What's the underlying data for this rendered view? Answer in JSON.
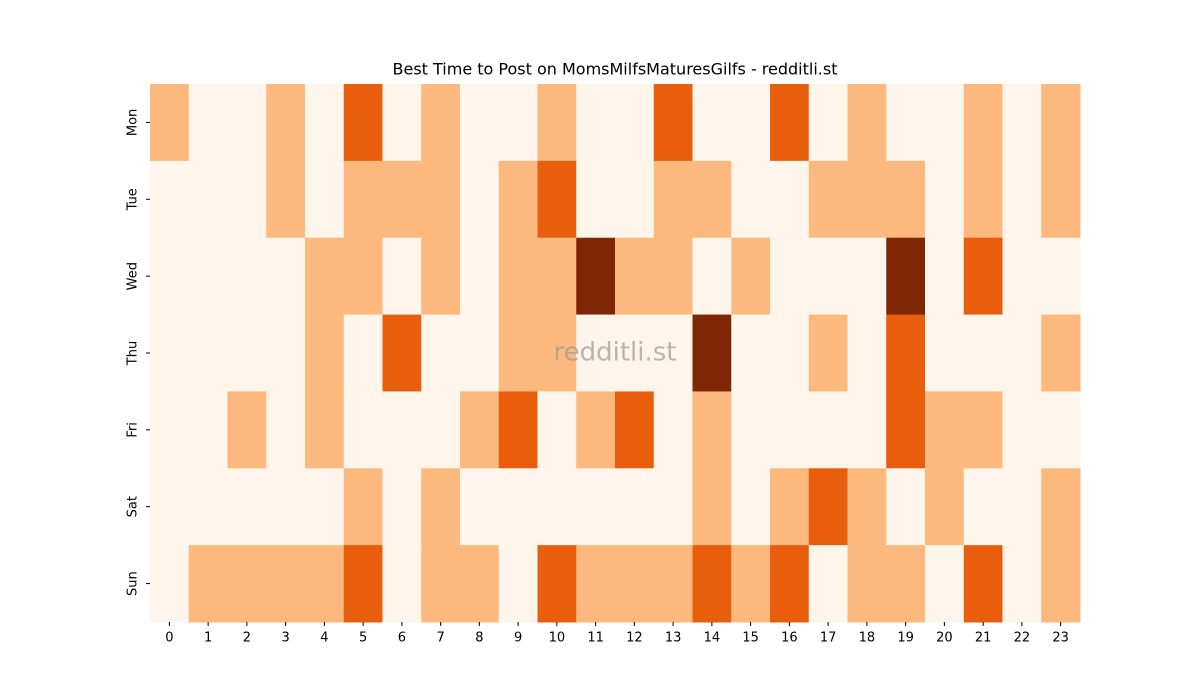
{
  "chart_data": {
    "type": "heatmap",
    "title": "Best Time to Post on MomsMilfsMaturesGilfs - redditli.st",
    "watermark": "redditli.st",
    "x": [
      0,
      1,
      2,
      3,
      4,
      5,
      6,
      7,
      8,
      9,
      10,
      11,
      12,
      13,
      14,
      15,
      16,
      17,
      18,
      19,
      20,
      21,
      22,
      23
    ],
    "y": [
      "Mon",
      "Tue",
      "Wed",
      "Thu",
      "Fri",
      "Sat",
      "Sun"
    ],
    "values": [
      [
        1,
        0,
        0,
        1,
        0,
        2,
        0,
        1,
        0,
        0,
        1,
        0,
        0,
        2,
        0,
        0,
        2,
        0,
        1,
        0,
        0,
        1,
        0,
        1
      ],
      [
        0,
        0,
        0,
        1,
        0,
        1,
        1,
        1,
        0,
        1,
        2,
        0,
        0,
        1,
        1,
        0,
        0,
        1,
        1,
        1,
        0,
        1,
        0,
        1
      ],
      [
        0,
        0,
        0,
        0,
        1,
        1,
        0,
        1,
        0,
        1,
        1,
        3,
        1,
        1,
        0,
        1,
        0,
        0,
        0,
        3,
        0,
        2,
        0,
        0
      ],
      [
        0,
        0,
        0,
        0,
        1,
        0,
        2,
        0,
        0,
        1,
        1,
        0,
        0,
        0,
        3,
        0,
        0,
        1,
        0,
        2,
        0,
        0,
        0,
        1
      ],
      [
        0,
        0,
        1,
        0,
        1,
        0,
        0,
        0,
        1,
        2,
        0,
        1,
        2,
        0,
        1,
        0,
        0,
        0,
        0,
        2,
        1,
        1,
        0,
        0
      ],
      [
        0,
        0,
        0,
        0,
        0,
        1,
        0,
        1,
        0,
        0,
        0,
        0,
        0,
        0,
        1,
        0,
        1,
        2,
        1,
        0,
        1,
        0,
        0,
        1
      ],
      [
        0,
        1,
        1,
        1,
        1,
        2,
        0,
        1,
        1,
        0,
        2,
        1,
        1,
        1,
        2,
        1,
        2,
        0,
        1,
        1,
        0,
        2,
        0,
        1
      ]
    ],
    "colorscale": [
      "#fff5eb",
      "#fdb97d",
      "#e95e0d",
      "#7f2704"
    ],
    "vlim": [
      0,
      3
    ]
  }
}
